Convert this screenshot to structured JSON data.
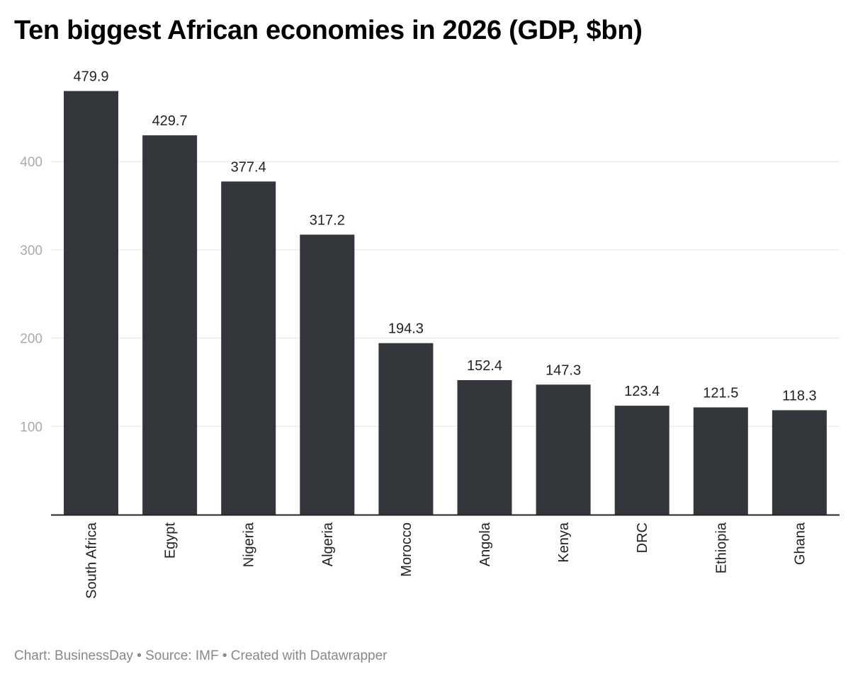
{
  "chart_data": {
    "type": "bar",
    "title": "Ten biggest African economies in 2026 (GDP, $bn)",
    "categories": [
      "South Africa",
      "Egypt",
      "Nigeria",
      "Algeria",
      "Morocco",
      "Angola",
      "Kenya",
      "DRC",
      "Ethiopia",
      "Ghana"
    ],
    "values": [
      479.9,
      429.7,
      377.4,
      317.2,
      194.3,
      152.4,
      147.3,
      123.4,
      121.5,
      118.3
    ],
    "value_labels": [
      "479.9",
      "429.7",
      "377.4",
      "317.2",
      "194.3",
      "152.4",
      "147.3",
      "123.4",
      "121.5",
      "118.3"
    ],
    "yticks": [
      100,
      200,
      300,
      400
    ],
    "ylim": [
      0,
      500
    ],
    "grid": true,
    "bar_color": "#33363b",
    "xlabel": "",
    "ylabel": ""
  },
  "footer": {
    "text": "Chart: BusinessDay • Source: IMF • Created with Datawrapper"
  }
}
